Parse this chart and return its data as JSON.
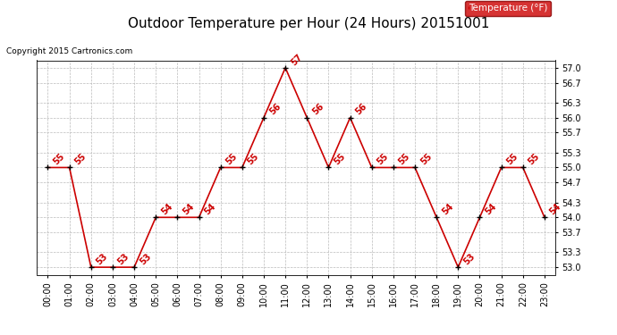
{
  "title": "Outdoor Temperature per Hour (24 Hours) 20151001",
  "copyright": "Copyright 2015 Cartronics.com",
  "hours": [
    "00:00",
    "01:00",
    "02:00",
    "03:00",
    "04:00",
    "05:00",
    "06:00",
    "07:00",
    "08:00",
    "09:00",
    "10:00",
    "11:00",
    "12:00",
    "13:00",
    "14:00",
    "15:00",
    "16:00",
    "17:00",
    "18:00",
    "19:00",
    "20:00",
    "21:00",
    "22:00",
    "23:00"
  ],
  "temperatures": [
    55,
    55,
    53,
    53,
    53,
    54,
    54,
    54,
    55,
    55,
    56,
    57,
    56,
    55,
    56,
    55,
    55,
    55,
    54,
    53,
    54,
    55,
    55,
    54
  ],
  "line_color": "#cc0000",
  "marker_color": "#000000",
  "label_color": "#cc0000",
  "legend_label": "Temperature (°F)",
  "legend_bg": "#cc0000",
  "legend_fg": "#ffffff",
  "yticks": [
    53.0,
    53.3,
    53.7,
    54.0,
    54.3,
    54.7,
    55.0,
    55.3,
    55.7,
    56.0,
    56.3,
    56.7,
    57.0
  ],
  "ylim_min": 52.85,
  "ylim_max": 57.15,
  "bg_color": "#ffffff",
  "grid_color": "#bbbbbb",
  "title_fontsize": 11,
  "label_fontsize": 7,
  "copyright_fontsize": 6.5,
  "tick_fontsize": 7,
  "legend_fontsize": 7.5
}
